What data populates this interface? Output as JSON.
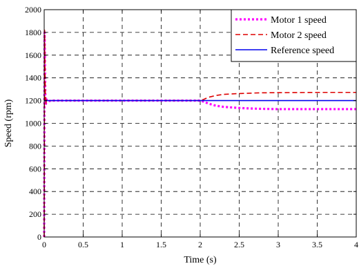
{
  "chart_data": {
    "type": "line",
    "title": "",
    "xlabel": "Time (s)",
    "ylabel": "Speed (rpm)",
    "xlim": [
      0,
      4
    ],
    "ylim": [
      0,
      2000
    ],
    "x_ticks": [
      "0",
      "0.5",
      "1",
      "1.5",
      "2",
      "2.5",
      "3",
      "3.5",
      "4"
    ],
    "y_ticks": [
      "0",
      "200",
      "400",
      "600",
      "800",
      "1000",
      "1200",
      "1400",
      "1600",
      "1800",
      "2000"
    ],
    "grid": true,
    "grid_style": "dashed",
    "legend_position": "top-right",
    "series": [
      {
        "name": "Motor 1 speed",
        "color": "#ff00ff",
        "style": "dotted",
        "points": [
          [
            0,
            0
          ],
          [
            0.005,
            1800
          ],
          [
            0.01,
            1500
          ],
          [
            0.015,
            1250
          ],
          [
            0.02,
            1160
          ],
          [
            0.03,
            1210
          ],
          [
            0.05,
            1195
          ],
          [
            0.1,
            1200
          ],
          [
            1.0,
            1200
          ],
          [
            2.0,
            1200
          ],
          [
            2.05,
            1190
          ],
          [
            2.1,
            1175
          ],
          [
            2.2,
            1155
          ],
          [
            2.3,
            1145
          ],
          [
            2.5,
            1135
          ],
          [
            2.75,
            1128
          ],
          [
            3.0,
            1125
          ],
          [
            3.5,
            1125
          ],
          [
            4.0,
            1125
          ]
        ]
      },
      {
        "name": "Motor 2 speed",
        "color": "#dd0000",
        "style": "dashed",
        "points": [
          [
            0,
            0
          ],
          [
            0.005,
            1820
          ],
          [
            0.01,
            1480
          ],
          [
            0.015,
            1240
          ],
          [
            0.02,
            1170
          ],
          [
            0.03,
            1205
          ],
          [
            0.05,
            1198
          ],
          [
            0.1,
            1200
          ],
          [
            1.0,
            1200
          ],
          [
            2.0,
            1200
          ],
          [
            2.05,
            1212
          ],
          [
            2.1,
            1228
          ],
          [
            2.2,
            1245
          ],
          [
            2.3,
            1255
          ],
          [
            2.5,
            1262
          ],
          [
            2.75,
            1268
          ],
          [
            3.0,
            1270
          ],
          [
            3.5,
            1272
          ],
          [
            4.0,
            1272
          ]
        ]
      },
      {
        "name": "Reference speed",
        "color": "#0000ee",
        "style": "solid",
        "points": [
          [
            0,
            1200
          ],
          [
            4,
            1200
          ]
        ]
      }
    ]
  }
}
